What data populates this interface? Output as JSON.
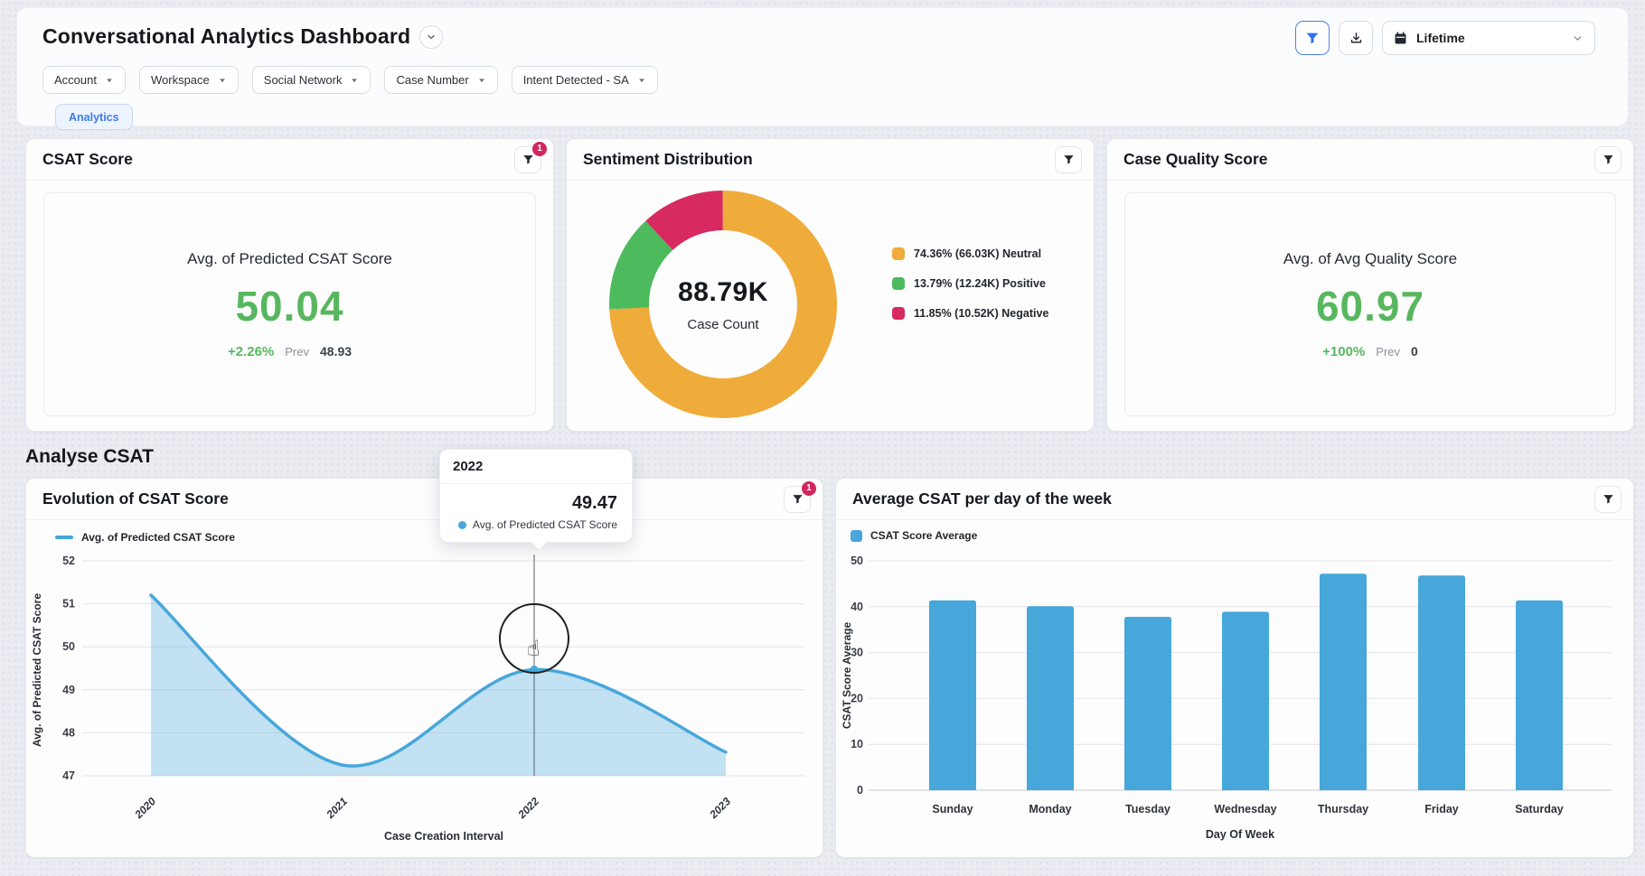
{
  "page": {
    "title": "Conversational Analytics Dashboard"
  },
  "toolbar": {
    "date_range": "Lifetime"
  },
  "filters": [
    {
      "label": "Account"
    },
    {
      "label": "Workspace"
    },
    {
      "label": "Social Network"
    },
    {
      "label": "Case Number"
    },
    {
      "label": "Intent Detected - SA"
    }
  ],
  "tabs": [
    {
      "label": "Analytics"
    }
  ],
  "section": {
    "title": "Analyse CSAT"
  },
  "cards": {
    "csat": {
      "title": "CSAT Score",
      "filter_badge": "1",
      "metric_label": "Avg. of Predicted CSAT Score",
      "value": "50.04",
      "delta": "+2.26%",
      "prev_label": "Prev",
      "prev_value": "48.93"
    },
    "quality": {
      "title": "Case Quality Score",
      "metric_label": "Avg. of Avg Quality Score",
      "value": "60.97",
      "delta": "+100%",
      "prev_label": "Prev",
      "prev_value": "0"
    }
  },
  "tooltip": {
    "title": "2022",
    "value": "49.47",
    "series": "Avg. of Predicted CSAT Score"
  },
  "colors": {
    "metric_green": "#58b75e",
    "series_blue": "#47a7da",
    "accent_blue": "#2f6fed",
    "badge_red": "#d3265e",
    "donut_orange": "#efac3a",
    "donut_green": "#4eba5e",
    "donut_pink": "#d62a61"
  },
  "chart_data": [
    {
      "id": "sentiment_donut",
      "type": "pie",
      "title": "Sentiment Distribution",
      "center_value": "88.79K",
      "center_label": "Case Count",
      "slices": [
        {
          "label": "Neutral",
          "pct": 74.36,
          "count": "66.03K",
          "color": "#efac3a",
          "legend": "74.36% (66.03K) Neutral"
        },
        {
          "label": "Positive",
          "pct": 13.79,
          "count": "12.24K",
          "color": "#4eba5e",
          "legend": "13.79% (12.24K) Positive"
        },
        {
          "label": "Negative",
          "pct": 11.85,
          "count": "10.52K",
          "color": "#d62a61",
          "legend": "11.85% (10.52K) Negative"
        }
      ]
    },
    {
      "id": "evolution",
      "type": "area",
      "title": "Evolution of CSAT Score",
      "filter_badge": "1",
      "legend": "Avg. of Predicted CSAT Score",
      "xlabel": "Case Creation Interval",
      "ylabel": "Avg. of Predicted CSAT Score",
      "x": [
        "2020",
        "2021",
        "2022",
        "2023"
      ],
      "values": [
        51.2,
        47.25,
        49.47,
        47.55
      ],
      "ylim": [
        47,
        52
      ],
      "yticks": [
        52,
        51,
        50,
        49,
        48,
        47
      ],
      "highlight": {
        "x": "2022",
        "value": 49.47
      }
    },
    {
      "id": "weekday",
      "type": "bar",
      "title": "Average CSAT per day of the week",
      "legend": "CSAT Score Average",
      "xlabel": "Day Of Week",
      "ylabel": "CSAT Score Average",
      "categories": [
        "Sunday",
        "Monday",
        "Tuesday",
        "Wednesday",
        "Thursday",
        "Friday",
        "Saturday"
      ],
      "values": [
        41.4,
        40.1,
        37.8,
        38.9,
        47.2,
        46.8,
        41.4
      ],
      "ylim": [
        0,
        50
      ],
      "yticks": [
        50,
        40,
        30,
        20,
        10,
        0
      ]
    }
  ]
}
